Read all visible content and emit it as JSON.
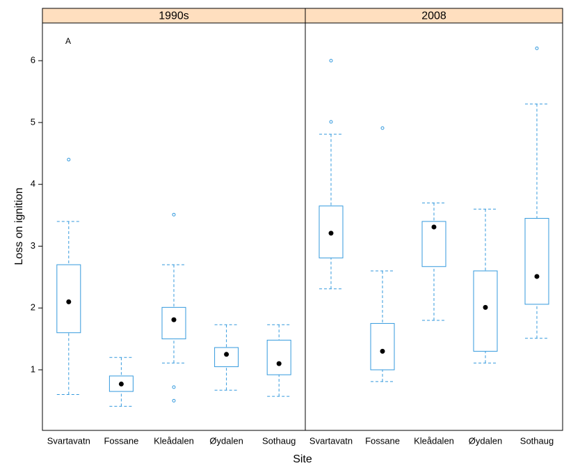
{
  "chart_data": {
    "type": "box",
    "x_label": "Site",
    "y_label": "Loss on ignition",
    "annotation": "A",
    "color": "#3399dd",
    "strip_color": "#ffdfbf",
    "ylim": [
      0.02,
      6.61
    ],
    "yticks": [
      1,
      2,
      3,
      4,
      5,
      6
    ],
    "panels": [
      {
        "title": "1990s",
        "categories": [
          "Svartavatn",
          "Fossane",
          "Kleådalen",
          "Øydalen",
          "Sothaug"
        ],
        "min": [
          0.6,
          0.41,
          1.11,
          0.67,
          0.57
        ],
        "q1": [
          1.6,
          0.65,
          1.5,
          1.05,
          0.92
        ],
        "median": [
          2.1,
          0.77,
          1.81,
          1.25,
          1.1
        ],
        "q3": [
          2.7,
          0.9,
          2.01,
          1.36,
          1.48
        ],
        "max": [
          3.4,
          1.2,
          2.7,
          1.73,
          1.73
        ],
        "outliers": [
          [
            4.4
          ],
          [],
          [
            3.51,
            0.72,
            0.5
          ],
          [],
          []
        ]
      },
      {
        "title": "2008",
        "categories": [
          "Svartavatn",
          "Fossane",
          "Kleådalen",
          "Øydalen",
          "Sothaug"
        ],
        "min": [
          2.31,
          0.81,
          1.8,
          1.11,
          1.51
        ],
        "q1": [
          2.81,
          1.0,
          2.67,
          1.3,
          2.06
        ],
        "median": [
          3.21,
          1.3,
          3.31,
          2.01,
          2.51
        ],
        "q3": [
          3.65,
          1.75,
          3.4,
          2.6,
          3.45
        ],
        "max": [
          4.81,
          2.6,
          3.7,
          3.6,
          5.3
        ],
        "outliers": [
          [
            5.01,
            6.0
          ],
          [
            4.91
          ],
          [],
          [],
          [
            6.2
          ]
        ]
      }
    ]
  }
}
